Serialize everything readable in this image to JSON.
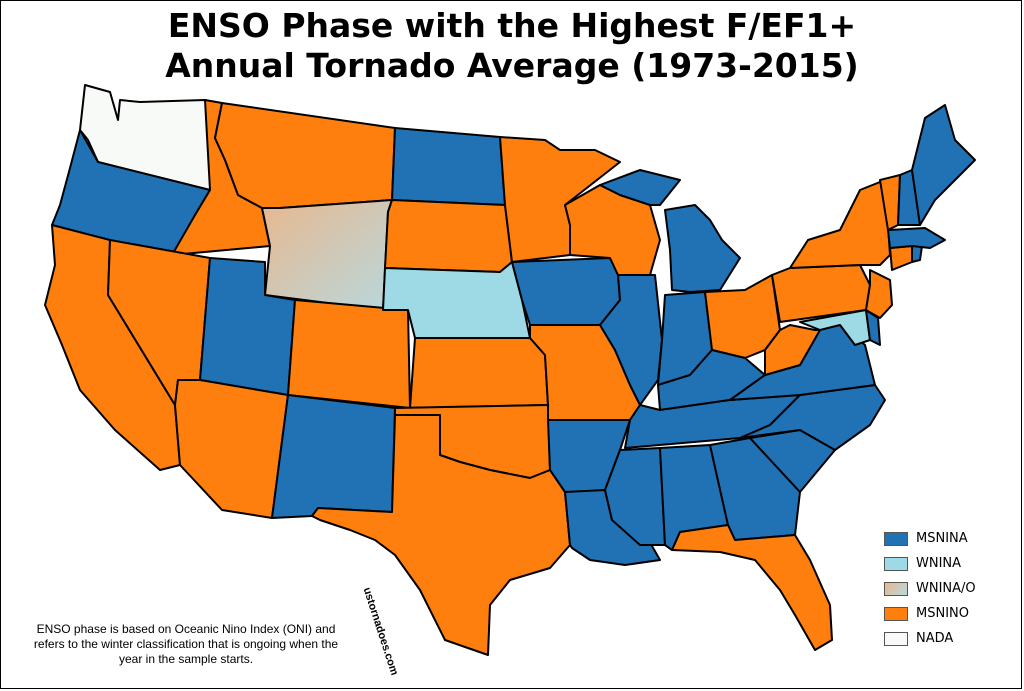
{
  "title_line1": "ENSO Phase with the Highest F/EF1+",
  "title_line2": "Annual Tornado Average (1973-2015)",
  "legend": [
    {
      "label": "MSNINA",
      "color": "#2171b5"
    },
    {
      "label": "WNINA",
      "color": "#9edae5"
    },
    {
      "label": "WNINA/O",
      "color": "#d9b9a0"
    },
    {
      "label": "MSNINO",
      "color": "#ff7f0e"
    },
    {
      "label": "NADA",
      "color": "#f7faf7"
    }
  ],
  "note": "ENSO phase is based on Oceanic Nino Index (ONI) and refers to the winter classification that is ongoing when the year in the sample starts.",
  "watermark": "ustornadoes.com",
  "states": [
    {
      "name": "WA",
      "phase": "NADA"
    },
    {
      "name": "OR",
      "phase": "MSNINA"
    },
    {
      "name": "CA",
      "phase": "MSNINO"
    },
    {
      "name": "NV",
      "phase": "MSNINO"
    },
    {
      "name": "ID",
      "phase": "MSNINO"
    },
    {
      "name": "MT",
      "phase": "MSNINO"
    },
    {
      "name": "WY",
      "phase": "WNINA/O"
    },
    {
      "name": "UT",
      "phase": "MSNINA"
    },
    {
      "name": "AZ",
      "phase": "MSNINO"
    },
    {
      "name": "CO",
      "phase": "MSNINO"
    },
    {
      "name": "NM",
      "phase": "MSNINA"
    },
    {
      "name": "ND",
      "phase": "MSNINA"
    },
    {
      "name": "SD",
      "phase": "MSNINO"
    },
    {
      "name": "NE",
      "phase": "WNINA"
    },
    {
      "name": "KS",
      "phase": "MSNINO"
    },
    {
      "name": "OK",
      "phase": "MSNINO"
    },
    {
      "name": "TX",
      "phase": "MSNINO"
    },
    {
      "name": "MN",
      "phase": "MSNINO"
    },
    {
      "name": "IA",
      "phase": "MSNINA"
    },
    {
      "name": "MO",
      "phase": "MSNINO"
    },
    {
      "name": "AR",
      "phase": "MSNINA"
    },
    {
      "name": "LA",
      "phase": "MSNINA"
    },
    {
      "name": "WI",
      "phase": "MSNINO"
    },
    {
      "name": "IL",
      "phase": "MSNINA"
    },
    {
      "name": "MI",
      "phase": "MSNINA"
    },
    {
      "name": "IN",
      "phase": "MSNINA"
    },
    {
      "name": "OH",
      "phase": "MSNINO"
    },
    {
      "name": "KY",
      "phase": "MSNINA"
    },
    {
      "name": "TN",
      "phase": "MSNINA"
    },
    {
      "name": "MS",
      "phase": "MSNINA"
    },
    {
      "name": "AL",
      "phase": "MSNINA"
    },
    {
      "name": "GA",
      "phase": "MSNINA"
    },
    {
      "name": "FL",
      "phase": "MSNINO"
    },
    {
      "name": "SC",
      "phase": "MSNINA"
    },
    {
      "name": "NC",
      "phase": "MSNINA"
    },
    {
      "name": "VA",
      "phase": "MSNINA"
    },
    {
      "name": "WV",
      "phase": "MSNINO"
    },
    {
      "name": "MD",
      "phase": "WNINA"
    },
    {
      "name": "DE",
      "phase": "MSNINA"
    },
    {
      "name": "PA",
      "phase": "MSNINO"
    },
    {
      "name": "NJ",
      "phase": "MSNINO"
    },
    {
      "name": "NY",
      "phase": "MSNINO"
    },
    {
      "name": "CT",
      "phase": "MSNINO"
    },
    {
      "name": "RI",
      "phase": "MSNINA"
    },
    {
      "name": "MA",
      "phase": "MSNINA"
    },
    {
      "name": "VT",
      "phase": "MSNINO"
    },
    {
      "name": "NH",
      "phase": "MSNINA"
    },
    {
      "name": "ME",
      "phase": "MSNINA"
    }
  ]
}
